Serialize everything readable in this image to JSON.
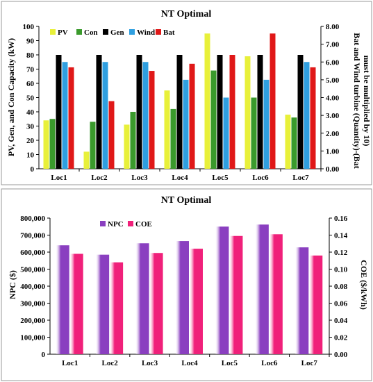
{
  "chart_data": [
    {
      "type": "bar",
      "title": "NT Optimal",
      "categories": [
        "Loc1",
        "Loc2",
        "Loc3",
        "Loc4",
        "Loc5",
        "Loc6",
        "Loc7"
      ],
      "ylabel": "PV, Gen, and Con Capacity (kW)",
      "y2label": "Bat and Wind turbine (Quantity)-(Bat must be multiplied by 10)",
      "ylim": [
        0,
        100
      ],
      "y2lim": [
        0,
        8
      ],
      "yticks": [
        "0",
        "10",
        "20",
        "30",
        "40",
        "50",
        "60",
        "70",
        "80",
        "90",
        "100"
      ],
      "y2ticks": [
        "0.00",
        "1.00",
        "2.00",
        "3.00",
        "4.00",
        "5.00",
        "6.00",
        "7.00",
        "8.00"
      ],
      "legend_position": "top-left",
      "series": [
        {
          "name": "PV",
          "axis": "left",
          "color": "#e8f03a",
          "values": [
            34,
            12,
            31,
            55,
            95,
            79,
            38
          ]
        },
        {
          "name": "Con",
          "axis": "left",
          "color": "#3a9a2c",
          "values": [
            35,
            33,
            40,
            42,
            69,
            50,
            36
          ]
        },
        {
          "name": "Gen",
          "axis": "left",
          "color": "#000000",
          "values": [
            80,
            80,
            80,
            80,
            80,
            80,
            80
          ]
        },
        {
          "name": "Wind",
          "axis": "right",
          "color": "#2f9fe0",
          "values": [
            6.0,
            6.0,
            6.0,
            5.0,
            4.0,
            5.0,
            6.0
          ]
        },
        {
          "name": "Bat",
          "axis": "right",
          "color": "#e01818",
          "values": [
            5.7,
            3.8,
            5.5,
            5.9,
            6.4,
            7.6,
            5.7
          ]
        }
      ]
    },
    {
      "type": "bar",
      "title": "NT Optimal",
      "categories": [
        "Loc1",
        "Loc2",
        "Loc3",
        "Loc4",
        "Loc5",
        "Loc6",
        "Loc7"
      ],
      "ylabel": "NPC ($)",
      "y2label": "COE ($/kWh)",
      "ylim": [
        0,
        800000
      ],
      "y2lim": [
        0,
        0.16
      ],
      "yticks": [
        "0",
        "100,000",
        "200,000",
        "300,000",
        "400,000",
        "500,000",
        "600,000",
        "700,000",
        "800,000"
      ],
      "y2ticks": [
        "0.00",
        "0.02",
        "0.04",
        "0.06",
        "0.08",
        "0.10",
        "0.12",
        "0.14",
        "0.16"
      ],
      "legend_position": "top-left",
      "series": [
        {
          "name": "NPC",
          "axis": "left",
          "color": "#8a3fc0",
          "values": [
            640000,
            585000,
            652000,
            665000,
            750000,
            762000,
            628000
          ]
        },
        {
          "name": "COE",
          "axis": "right",
          "color": "#f0207a",
          "values": [
            0.118,
            0.108,
            0.119,
            0.124,
            0.139,
            0.141,
            0.116
          ]
        }
      ]
    }
  ]
}
